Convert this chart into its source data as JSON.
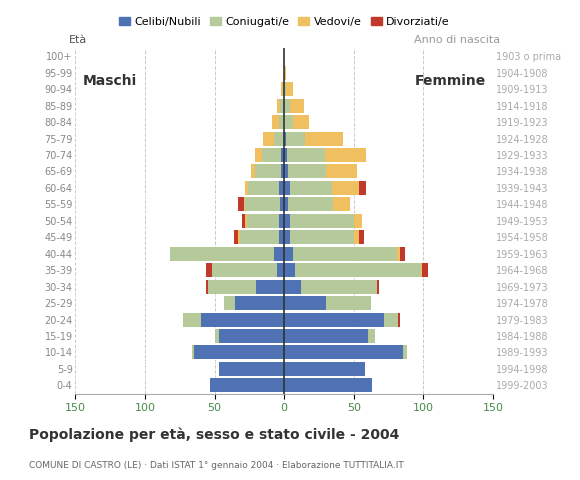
{
  "title": "Popolazione per età, sesso e stato civile - 2004",
  "subtitle": "COMUNE DI CASTRO (LE) · Dati ISTAT 1° gennaio 2004 · Elaborazione TUTTITALIA.IT",
  "ylabel_right": "Anno di nascita",
  "age_groups": [
    "100+",
    "95-99",
    "90-94",
    "85-89",
    "80-84",
    "75-79",
    "70-74",
    "65-69",
    "60-64",
    "55-59",
    "50-54",
    "45-49",
    "40-44",
    "35-39",
    "30-34",
    "25-29",
    "20-24",
    "15-19",
    "10-14",
    "5-9",
    "0-4"
  ],
  "birth_years": [
    "1903 o prima",
    "1904-1908",
    "1909-1913",
    "1914-1918",
    "1919-1923",
    "1924-1928",
    "1929-1933",
    "1934-1938",
    "1939-1943",
    "1944-1948",
    "1949-1953",
    "1954-1958",
    "1959-1963",
    "1964-1968",
    "1969-1973",
    "1974-1978",
    "1979-1983",
    "1984-1988",
    "1989-1993",
    "1994-1998",
    "1999-2003"
  ],
  "males": {
    "celibe": [
      0,
      0,
      0,
      0,
      0,
      0,
      2,
      2,
      4,
      3,
      4,
      4,
      7,
      5,
      20,
      35,
      60,
      47,
      65,
      47,
      53
    ],
    "coniugato": [
      0,
      0,
      1,
      3,
      4,
      7,
      14,
      19,
      22,
      25,
      23,
      28,
      75,
      47,
      35,
      8,
      13,
      3,
      1,
      0,
      0
    ],
    "vedovo": [
      0,
      0,
      1,
      2,
      5,
      8,
      5,
      3,
      2,
      1,
      1,
      1,
      0,
      0,
      0,
      0,
      0,
      0,
      0,
      0,
      0
    ],
    "divorziato": [
      0,
      0,
      0,
      0,
      0,
      0,
      0,
      0,
      0,
      4,
      2,
      3,
      0,
      4,
      1,
      0,
      0,
      0,
      0,
      0,
      0
    ]
  },
  "females": {
    "nubile": [
      0,
      0,
      0,
      0,
      0,
      1,
      2,
      3,
      4,
      3,
      4,
      4,
      6,
      8,
      12,
      30,
      72,
      60,
      85,
      58,
      63
    ],
    "coniugata": [
      0,
      0,
      1,
      4,
      6,
      14,
      27,
      27,
      30,
      32,
      46,
      46,
      75,
      90,
      55,
      32,
      10,
      5,
      3,
      0,
      0
    ],
    "vedova": [
      0,
      1,
      5,
      10,
      12,
      27,
      30,
      22,
      20,
      12,
      6,
      4,
      2,
      1,
      0,
      0,
      0,
      0,
      0,
      0,
      0
    ],
    "divorziata": [
      0,
      0,
      0,
      0,
      0,
      0,
      0,
      0,
      5,
      0,
      0,
      3,
      4,
      4,
      1,
      0,
      1,
      0,
      0,
      0,
      0
    ]
  },
  "colors": {
    "celibe_nubile": "#4f72b5",
    "coniugato_coniugata": "#b5c99a",
    "vedovo_vedova": "#f0c060",
    "divorziato_divorziata": "#c0392b"
  },
  "legend_labels": [
    "Celibi/Nubili",
    "Coniugati/e",
    "Vedovi/e",
    "Divorziati/e"
  ],
  "xlim": 150,
  "background_color": "#ffffff",
  "grid_color": "#bbbbbb",
  "bar_height": 0.85,
  "tick_color": "#4a8a4a",
  "age_label_color": "#888888",
  "birth_label_color": "#aaaaaa",
  "maschi_label": "Maschi",
  "femmine_label": "Femmine"
}
